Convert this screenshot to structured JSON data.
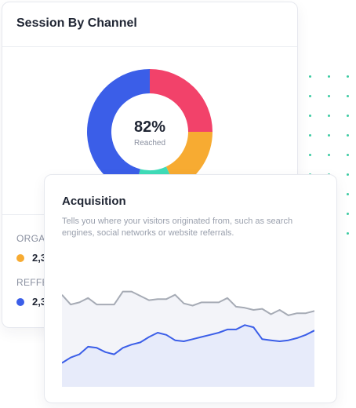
{
  "session_card": {
    "title": "Session By Channel",
    "donut": {
      "center_value": "82%",
      "center_label": "Reached",
      "segments": [
        {
          "name": "red",
          "value": 25,
          "color": "#f2426a"
        },
        {
          "name": "orange",
          "value": 18,
          "color": "#f7ab32"
        },
        {
          "name": "teal",
          "value": 11,
          "color": "#3fdcb8"
        },
        {
          "name": "blue",
          "value": 46,
          "color": "#3b5ee8"
        }
      ]
    },
    "legend": [
      {
        "label": "ORGAN",
        "value": "2,3",
        "color": "#f7ab32"
      },
      {
        "label": "REFFE",
        "value": "2,3",
        "color": "#3b5ee8"
      }
    ]
  },
  "acquisition_card": {
    "title": "Acquisition",
    "description": "Tells you where your visitors originated from, such as search engines, social networks or website referrals."
  },
  "chart_data": {
    "type": "area",
    "title": "",
    "grid": false,
    "legend": "none",
    "ylim": [
      0,
      100
    ],
    "x": [
      0,
      1,
      2,
      3,
      4,
      5,
      6,
      7,
      8,
      9,
      10,
      11,
      12,
      13,
      14,
      15,
      16,
      17,
      18,
      19,
      20,
      21,
      22,
      23,
      24,
      25,
      26,
      27,
      28,
      29
    ],
    "series": [
      {
        "values": [
          85,
          76,
          78,
          82,
          76,
          76,
          76,
          88,
          88,
          84,
          80,
          81,
          81,
          85,
          77,
          75,
          78,
          78,
          78,
          82,
          74,
          73,
          71,
          72,
          67,
          71,
          66,
          68,
          68,
          70
        ],
        "color": "#a6abb5",
        "fill": "#f3f4f9"
      },
      {
        "values": [
          22,
          27,
          30,
          37,
          36,
          32,
          30,
          36,
          39,
          41,
          46,
          50,
          48,
          43,
          42,
          44,
          46,
          48,
          50,
          53,
          53,
          57,
          55,
          44,
          43,
          42,
          43,
          45,
          48,
          52
        ],
        "color": "#3b5ee8",
        "fill": "#e7ebfa"
      }
    ]
  },
  "colors": {
    "dots": "#3ecba3",
    "card_border": "#e6e8ee"
  }
}
